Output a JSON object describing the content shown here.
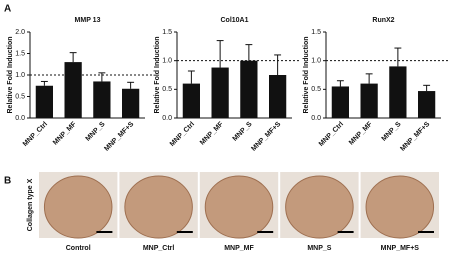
{
  "panel_a_label": "A",
  "panel_b_label": "B",
  "chart_data": [
    {
      "type": "bar",
      "title": "MMP 13",
      "y_label": "Relative Fold Induction",
      "categories": [
        "MNP_Ctrl",
        "MNP_MF",
        "MNP_S",
        "MNP_MF+S"
      ],
      "values": [
        0.75,
        1.3,
        0.85,
        0.68
      ],
      "errors": [
        0.1,
        0.22,
        0.2,
        0.15
      ],
      "color": "#111111",
      "ylim": [
        0,
        2
      ],
      "yticks": [
        {
          "value": 0,
          "label": "0.0"
        },
        {
          "value": 0.5,
          "label": "0.5"
        },
        {
          "value": 1,
          "label": "1.0"
        },
        {
          "value": 1.5,
          "label": "1.5"
        },
        {
          "value": 2,
          "label": "2.0"
        }
      ],
      "reference_line": 1
    },
    {
      "type": "bar",
      "title": "Col10A1",
      "y_label": "Relative Fold Induction",
      "categories": [
        "MNP_Ctrl",
        "MNP_MF",
        "MNP_S",
        "MNP_MF+S"
      ],
      "values": [
        0.6,
        0.88,
        1.0,
        0.75
      ],
      "errors": [
        0.22,
        0.47,
        0.28,
        0.35
      ],
      "color": "#111111",
      "ylim": [
        0,
        1.5
      ],
      "yticks": [
        {
          "value": 0,
          "label": "0.0"
        },
        {
          "value": 0.5,
          "label": "0.5"
        },
        {
          "value": 1,
          "label": "1.0"
        },
        {
          "value": 1.5,
          "label": "1.5"
        }
      ],
      "reference_line": 1
    },
    {
      "type": "bar",
      "title": "RunX2",
      "y_label": "Relative Fold Induction",
      "categories": [
        "MNP_Ctrl",
        "MNP_MF",
        "MNP_S",
        "MNP_MF+S"
      ],
      "values": [
        0.55,
        0.6,
        0.9,
        0.47
      ],
      "errors": [
        0.1,
        0.17,
        0.32,
        0.1
      ],
      "color": "#111111",
      "ylim": [
        0,
        1.5
      ],
      "yticks": [
        {
          "value": 0,
          "label": "0.0"
        },
        {
          "value": 0.5,
          "label": "0.5"
        },
        {
          "value": 1,
          "label": "1.0"
        },
        {
          "value": 1.5,
          "label": "1.5"
        }
      ],
      "reference_line": 1
    }
  ],
  "panel_b": {
    "row_label": "Collagen type  X",
    "images": [
      "Control",
      "MNP_Ctrl",
      "MNP_MF",
      "MNP_S",
      "MNP_MF+S"
    ]
  }
}
